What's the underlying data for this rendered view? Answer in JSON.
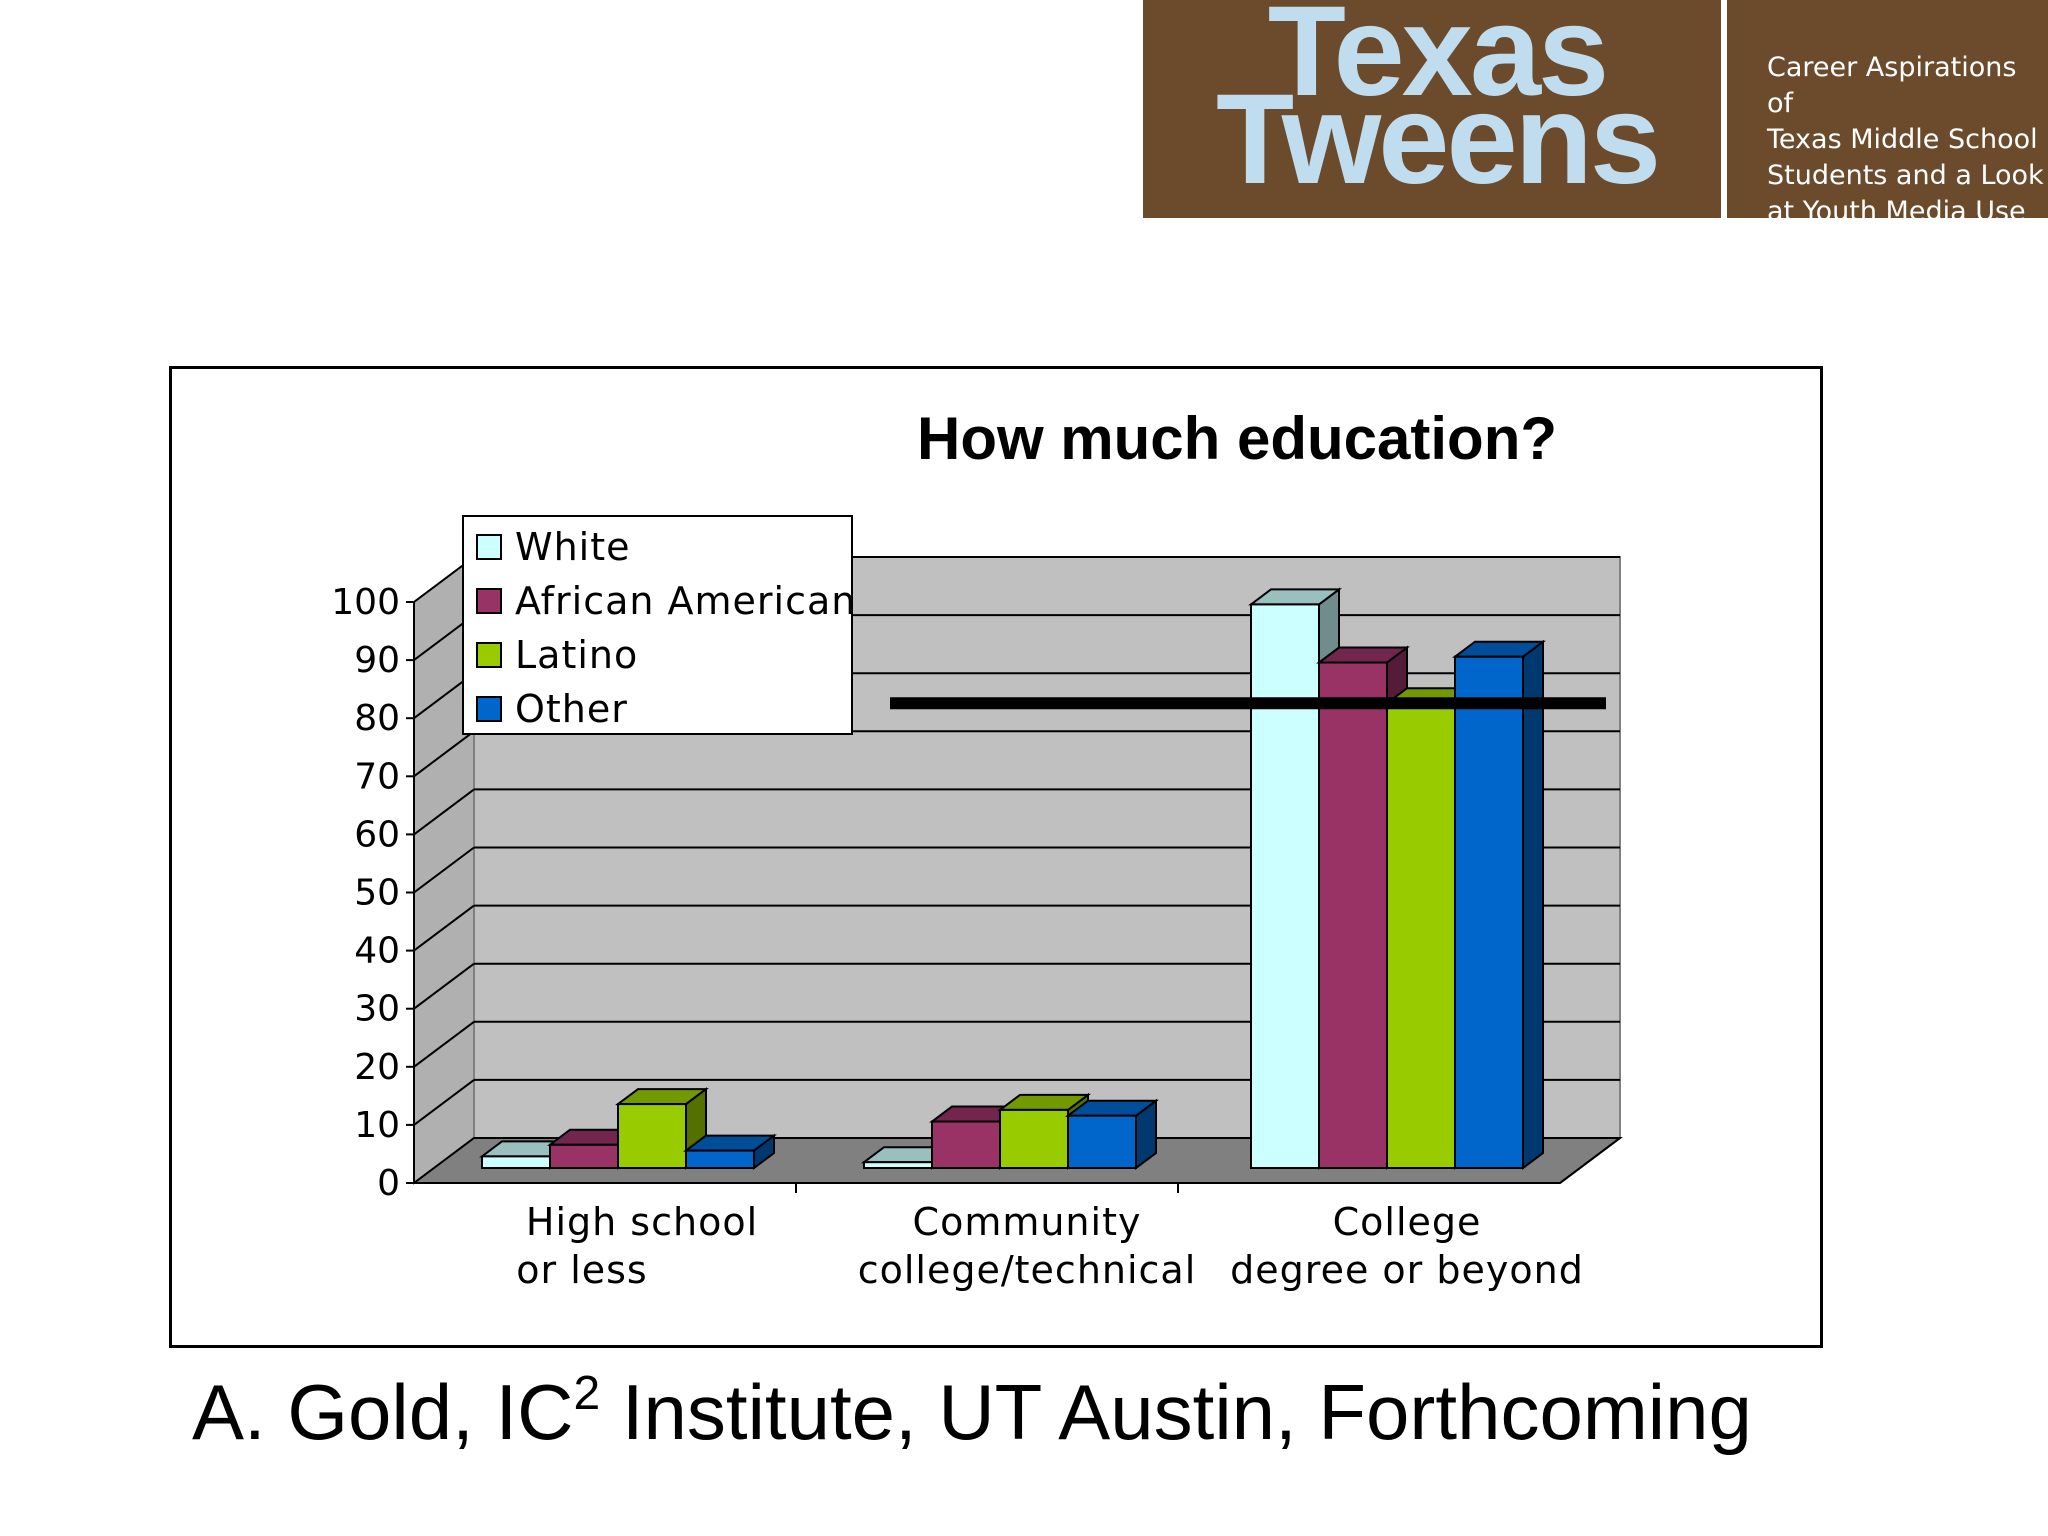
{
  "banner": {
    "logo_line1": "Texas",
    "logo_line2": "Tweens",
    "tagline": [
      "Career Aspirations of",
      "Texas Middle School",
      "Students and a Look",
      "at Youth Media Use"
    ],
    "bg_color": "#6b4b2b",
    "logo_color": "#c0dcef"
  },
  "credit": {
    "before_sup": "A. Gold, IC",
    "sup": "2",
    "after_sup": " Institute, UT Austin, Forthcoming"
  },
  "chart_data": {
    "type": "bar",
    "title": "How much education?",
    "xlabel": "",
    "ylabel": "",
    "ylim": [
      0,
      100
    ],
    "yticks": [
      0,
      10,
      20,
      30,
      40,
      50,
      60,
      70,
      80,
      90,
      100
    ],
    "grid": true,
    "legend_position": "top-left",
    "categories": [
      [
        "High school",
        "or less"
      ],
      [
        "Community",
        "college/technical"
      ],
      [
        "College",
        "degree or beyond"
      ]
    ],
    "series": [
      {
        "name": "White",
        "color": "#ccffff",
        "values": [
          2,
          1,
          97
        ]
      },
      {
        "name": "African American",
        "color": "#993366",
        "values": [
          4,
          8,
          87
        ]
      },
      {
        "name": "Latino",
        "color": "#99cc00",
        "values": [
          11,
          10,
          80
        ]
      },
      {
        "name": "Other",
        "color": "#0066cc",
        "values": [
          3,
          9,
          88
        ]
      }
    ],
    "reference_line": {
      "value": 80,
      "color": "#000000"
    }
  }
}
